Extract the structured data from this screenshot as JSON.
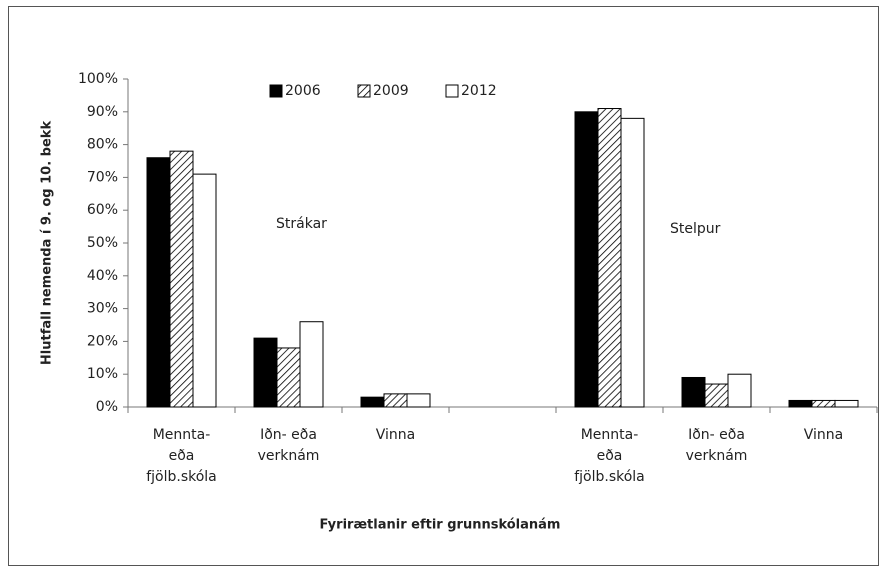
{
  "chart_data": {
    "type": "bar",
    "ylabel": "Hlutfall nemenda í 9. og 10. bekk",
    "xlabel": "Fyrirætlanir eftir grunnskólanám",
    "annotations": [
      "Strákar",
      "Stelpur"
    ],
    "categories": [
      [
        "Mennta-",
        "eða",
        "fjölb.skóla"
      ],
      [
        "Iðn- eða",
        "verknám"
      ],
      [
        "Vinna"
      ],
      null,
      [
        "Mennta-",
        "eða",
        "fjölb.skóla"
      ],
      [
        "Iðn- eða",
        "verknám"
      ],
      [
        "Vinna"
      ]
    ],
    "series": [
      {
        "name": "2006",
        "color": "#000000",
        "values": [
          76,
          21,
          3,
          null,
          90,
          9,
          2
        ]
      },
      {
        "name": "2009",
        "color": "#ffffff",
        "pattern": "hatch",
        "values": [
          78,
          18,
          4,
          null,
          91,
          7,
          2
        ]
      },
      {
        "name": "2012",
        "color": "#ffffff",
        "values": [
          71,
          26,
          4,
          null,
          88,
          10,
          2
        ]
      }
    ],
    "ylim": [
      0,
      100
    ],
    "yticks": [
      {
        "value": 0,
        "label": "0%"
      },
      {
        "value": 10,
        "label": "10%"
      },
      {
        "value": 20,
        "label": "20%"
      },
      {
        "value": 30,
        "label": "30%"
      },
      {
        "value": 40,
        "label": "40%"
      },
      {
        "value": 50,
        "label": "50%"
      },
      {
        "value": 60,
        "label": "60%"
      },
      {
        "value": 70,
        "label": "70%"
      },
      {
        "value": 80,
        "label": "80%"
      },
      {
        "value": 90,
        "label": "90%"
      },
      {
        "value": 100,
        "label": "100%"
      }
    ],
    "grid": false,
    "legend": "top"
  }
}
